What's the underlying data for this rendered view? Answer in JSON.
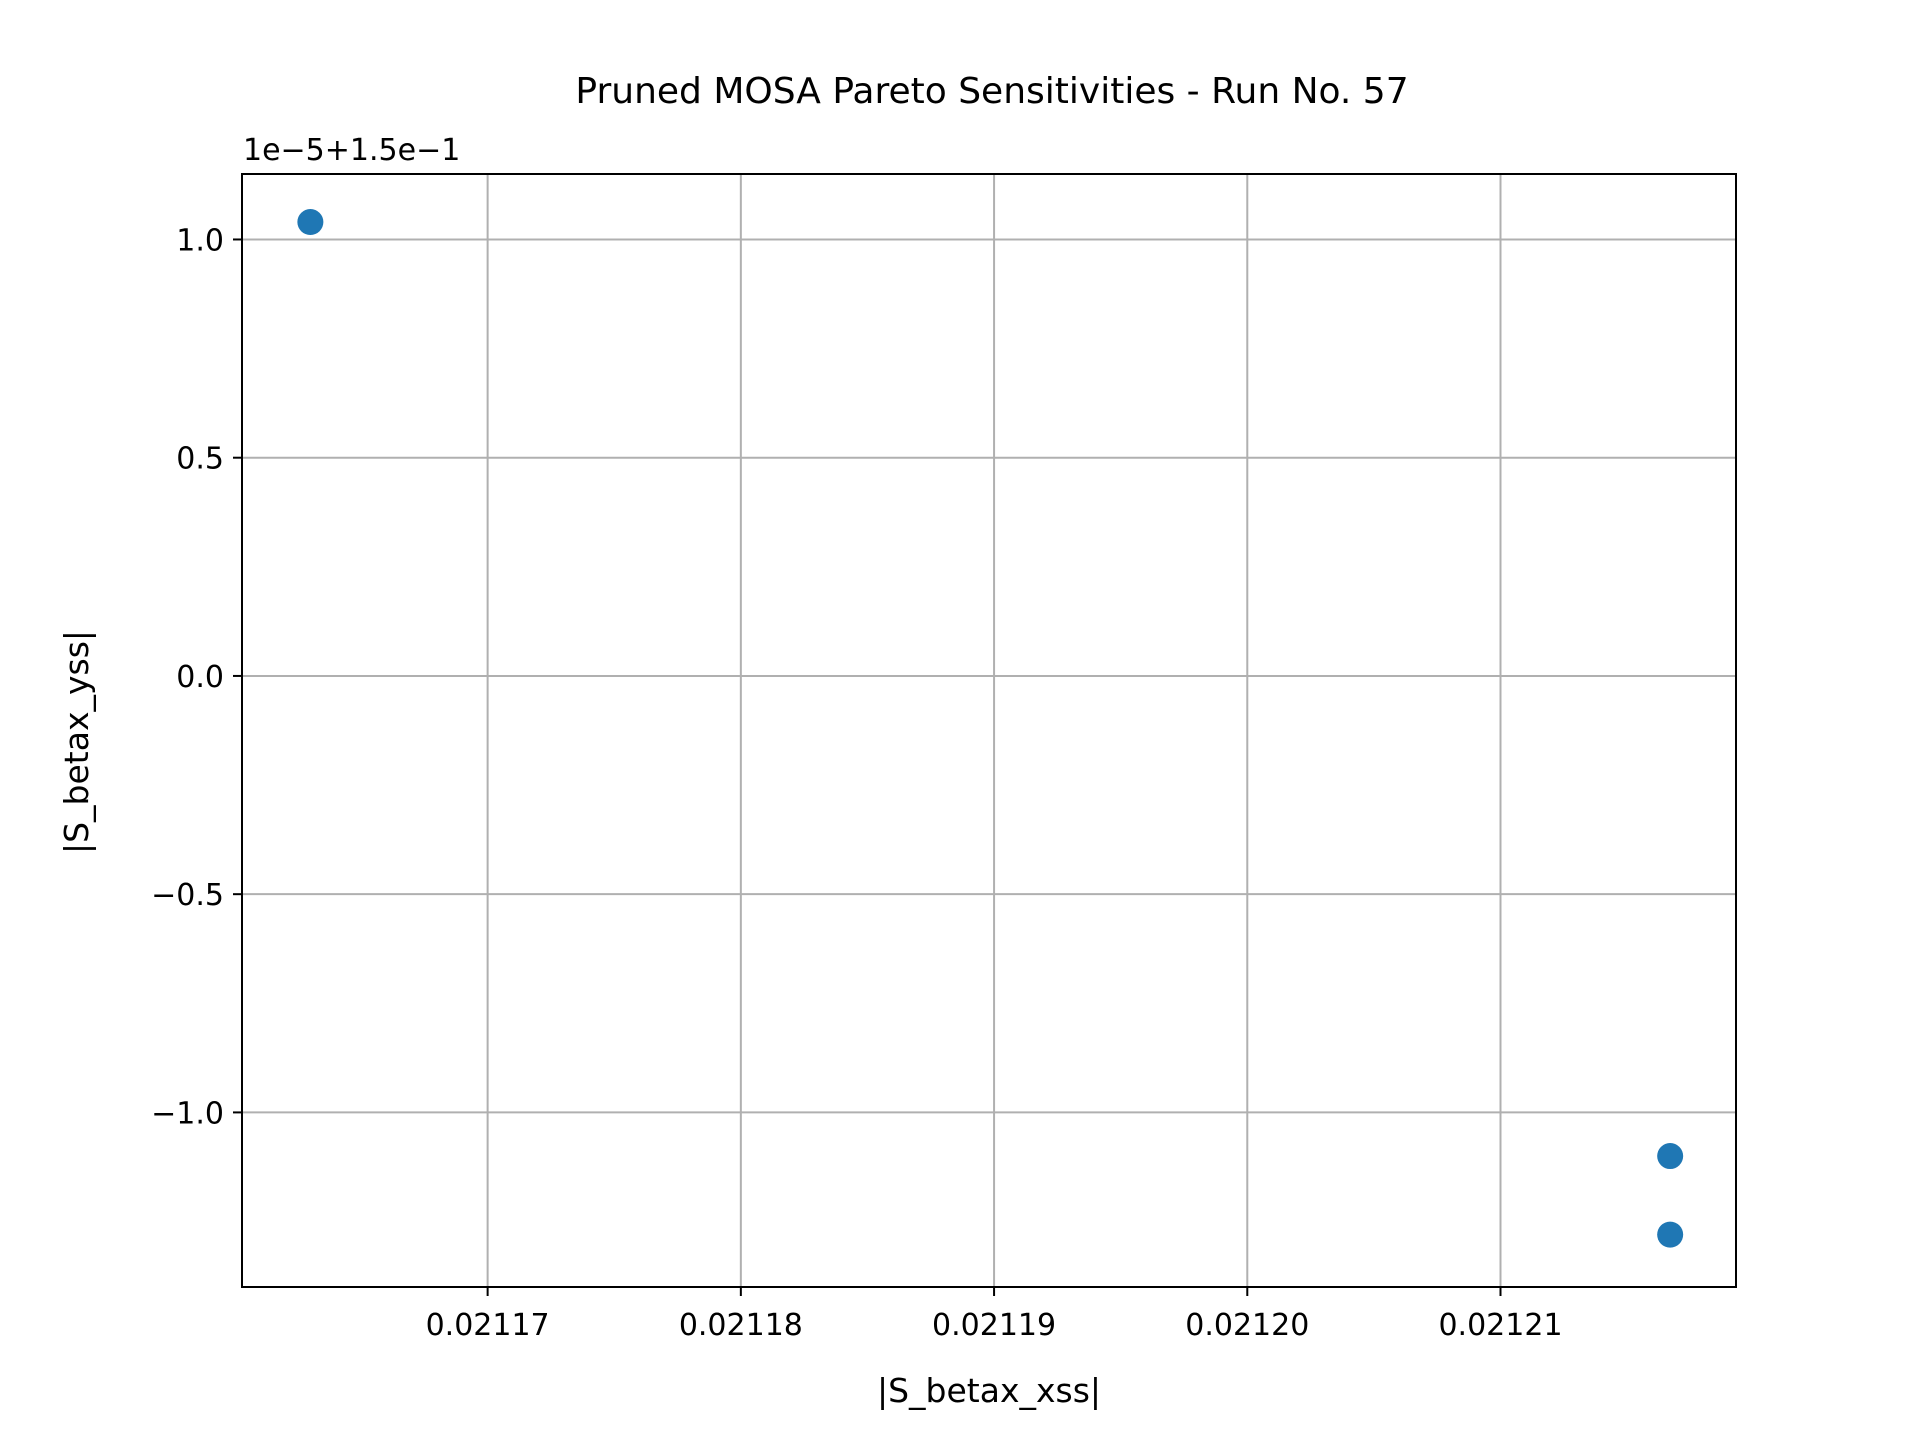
{
  "chart_data": {
    "type": "scatter",
    "title": "Pruned MOSA Pareto Sensitivities - Run No. 57",
    "xlabel": "|S_betax_xss|",
    "ylabel": "|S_betax_yss|",
    "y_offset_label": "1e−5+1.5e−1",
    "xlim": [
      0.0211603,
      0.0212193
    ],
    "ylim": [
      -1.4,
      1.15
    ],
    "xticks": [
      0.02117,
      0.02118,
      0.02119,
      0.0212,
      0.02121
    ],
    "xtick_labels": [
      "0.02117",
      "0.02118",
      "0.02119",
      "0.02120",
      "0.02121"
    ],
    "yticks": [
      1.0,
      0.5,
      0.0,
      -0.5,
      -1.0
    ],
    "ytick_labels": [
      "1.0",
      "0.5",
      "0.0",
      "−0.5",
      "−1.0"
    ],
    "grid": true,
    "series": [
      {
        "points": [
          {
            "x": 0.021163,
            "y": 1.04
          },
          {
            "x": 0.0212167,
            "y": -1.1
          },
          {
            "x": 0.0212167,
            "y": -1.28
          }
        ],
        "color": "#1f77b4"
      }
    ]
  }
}
